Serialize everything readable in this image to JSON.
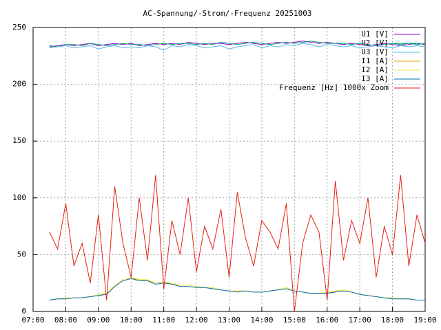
{
  "chart_data": {
    "type": "line",
    "title": "AC-Spannung/-Strom/-Frequenz 20251003",
    "x": [
      "07:30",
      "07:45",
      "08:00",
      "08:15",
      "08:30",
      "08:45",
      "09:00",
      "09:15",
      "09:30",
      "09:45",
      "10:00",
      "10:15",
      "10:30",
      "10:45",
      "11:00",
      "11:15",
      "11:30",
      "11:45",
      "12:00",
      "12:15",
      "12:30",
      "12:45",
      "13:00",
      "13:15",
      "13:30",
      "13:45",
      "14:00",
      "14:15",
      "14:30",
      "14:45",
      "15:00",
      "15:15",
      "15:30",
      "15:45",
      "16:00",
      "16:15",
      "16:30",
      "16:45",
      "17:00",
      "17:15",
      "17:30",
      "17:45",
      "18:00",
      "18:15",
      "18:30",
      "18:45",
      "19:00"
    ],
    "xlim": [
      "07:00",
      "19:00"
    ],
    "xticks": [
      "07:00",
      "08:00",
      "09:00",
      "10:00",
      "11:00",
      "12:00",
      "13:00",
      "14:00",
      "15:00",
      "16:00",
      "17:00",
      "18:00",
      "19:00"
    ],
    "ylim": [
      0,
      250
    ],
    "yticks": [
      0,
      50,
      100,
      150,
      200,
      250
    ],
    "grid": true,
    "legend": "top-right",
    "series": [
      {
        "name": "U1 [V]",
        "color": "#9400d3",
        "values": [
          233,
          234,
          235,
          234,
          235,
          236,
          234,
          235,
          236,
          235,
          236,
          234,
          235,
          236,
          235,
          236,
          235,
          237,
          236,
          235,
          236,
          236,
          235,
          236,
          237,
          236,
          235,
          236,
          237,
          236,
          237,
          238,
          237,
          236,
          237,
          236,
          235,
          236,
          235,
          234,
          235,
          236,
          235,
          234,
          235,
          236,
          235
        ]
      },
      {
        "name": "U2 [V]",
        "color": "#009e73",
        "values": [
          234,
          233,
          235,
          235,
          234,
          236,
          235,
          234,
          235,
          236,
          235,
          235,
          234,
          235,
          236,
          235,
          236,
          236,
          235,
          236,
          235,
          237,
          236,
          235,
          236,
          237,
          236,
          235,
          236,
          237,
          236,
          237,
          238,
          237,
          236,
          236,
          236,
          235,
          236,
          235,
          234,
          235,
          236,
          235,
          236,
          235,
          236
        ]
      },
      {
        "name": "U3 [V]",
        "color": "#56b4e9",
        "values": [
          232,
          233,
          234,
          232,
          233,
          234,
          231,
          233,
          234,
          232,
          233,
          232,
          234,
          233,
          230,
          234,
          233,
          235,
          234,
          232,
          233,
          234,
          231,
          233,
          234,
          235,
          232,
          234,
          233,
          235,
          234,
          236,
          235,
          233,
          235,
          234,
          233,
          234,
          232,
          233,
          234,
          233,
          232,
          234,
          233,
          234,
          233
        ]
      },
      {
        "name": "I1 [A]",
        "color": "#e69f00",
        "values": [
          10,
          11,
          11,
          12,
          12,
          13,
          14,
          16,
          22,
          27,
          29,
          28,
          27,
          25,
          26,
          24,
          23,
          23,
          22,
          21,
          20,
          19,
          18,
          18,
          18,
          17,
          17,
          18,
          19,
          20,
          18,
          17,
          16,
          16,
          16,
          18,
          19,
          17,
          15,
          14,
          13,
          12,
          12,
          11,
          11,
          10,
          10
        ]
      },
      {
        "name": "I2 [A]",
        "color": "#f0e442",
        "values": [
          10,
          11,
          12,
          12,
          12,
          13,
          15,
          16,
          23,
          28,
          30,
          28,
          28,
          25,
          26,
          25,
          23,
          23,
          22,
          21,
          21,
          19,
          18,
          18,
          18,
          17,
          17,
          18,
          19,
          21,
          18,
          17,
          16,
          16,
          17,
          18,
          19,
          17,
          15,
          14,
          13,
          12,
          12,
          11,
          11,
          10,
          10
        ]
      },
      {
        "name": "I3 [A]",
        "color": "#0072b2",
        "values": [
          10,
          11,
          11,
          12,
          12,
          13,
          14,
          15,
          22,
          27,
          29,
          27,
          27,
          24,
          25,
          24,
          22,
          22,
          21,
          21,
          20,
          19,
          18,
          17,
          18,
          17,
          17,
          18,
          19,
          20,
          18,
          17,
          16,
          16,
          16,
          17,
          18,
          17,
          15,
          14,
          13,
          12,
          11,
          11,
          11,
          10,
          10
        ]
      },
      {
        "name": "Frequenz [Hz] 1000x Zoom",
        "color": "#e51e10",
        "values": [
          70,
          55,
          95,
          40,
          60,
          25,
          85,
          10,
          110,
          60,
          30,
          100,
          45,
          120,
          20,
          80,
          50,
          100,
          35,
          75,
          55,
          90,
          30,
          105,
          65,
          40,
          80,
          70,
          55,
          95,
          0,
          60,
          85,
          70,
          10,
          115,
          45,
          80,
          60,
          100,
          30,
          75,
          50,
          120,
          40,
          85,
          60
        ]
      }
    ]
  }
}
